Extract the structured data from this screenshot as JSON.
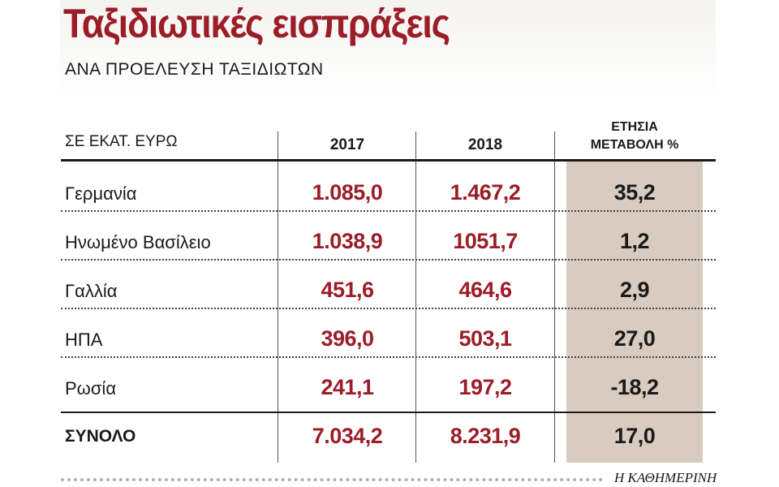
{
  "title": "Ταξιδιωτικές εισπράξεις",
  "subtitle": "ΑΝΑ ΠΡΟΕΛΕΥΣΗ ΤΑΞΙΔΙΩΤΩΝ",
  "brand": "Η ΚΑΘΗΜΕΡΙΝΗ",
  "colors": {
    "title": "#9b1d28",
    "values": "#9b1d28",
    "shade": "#d9cbbf"
  },
  "chart_data": {
    "type": "table",
    "title": "Ταξιδιωτικές εισπράξεις",
    "subtitle": "ΑΝΑ ΠΡΟΕΛΕΥΣΗ ΤΑΞΙΔΙΩΤΩΝ",
    "columns": [
      "ΣΕ ΕΚΑΤ. ΕΥΡΩ",
      "2017",
      "2018",
      "ΕΤΗΣΙΑ ΜΕΤΑΒΟΛΗ %"
    ],
    "change_header_lines": [
      "ΕΤΗΣΙΑ",
      "ΜΕΤΑΒΟΛΗ %"
    ],
    "rows": [
      {
        "label": "Γερμανία",
        "v2017": "1.085,0",
        "v2018": "1.467,2",
        "change": "35,2"
      },
      {
        "label": "Ηνωμένο Βασίλειο",
        "v2017": "1.038,9",
        "v2018": "1051,7",
        "change": "1,2"
      },
      {
        "label": "Γαλλία",
        "v2017": "451,6",
        "v2018": "464,6",
        "change": "2,9"
      },
      {
        "label": "ΗΠΑ",
        "v2017": "396,0",
        "v2018": "503,1",
        "change": "27,0"
      },
      {
        "label": "Ρωσία",
        "v2017": "241,1",
        "v2018": "197,2",
        "change": "-18,2"
      }
    ],
    "total": {
      "label": "ΣΥΝΟΛΟ",
      "v2017": "7.034,2",
      "v2018": "8.231,9",
      "change": "17,0"
    }
  }
}
